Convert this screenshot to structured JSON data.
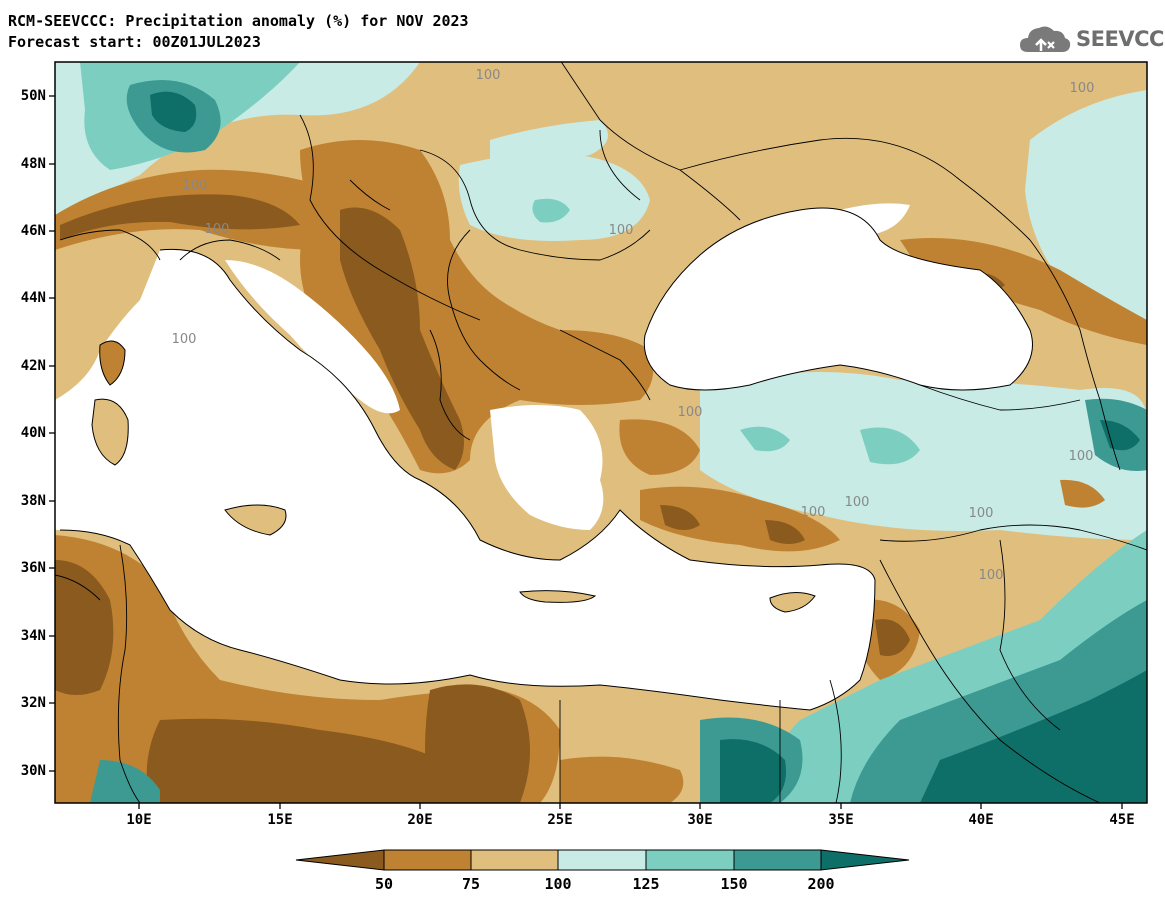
{
  "header": {
    "title": "RCM-SEEVCCC: Precipitation anomaly (%) for NOV 2023",
    "subtitle": "Forecast start: 00Z01JUL2023"
  },
  "logo": {
    "text": "SEEVCCC",
    "icon": "cloud-icon"
  },
  "map": {
    "lat_labels": [
      "50N",
      "48N",
      "46N",
      "44N",
      "42N",
      "40N",
      "38N",
      "36N",
      "34N",
      "32N",
      "30N"
    ],
    "lon_labels": [
      "10E",
      "15E",
      "20E",
      "25E",
      "30E",
      "35E",
      "40E",
      "45E"
    ],
    "contour_label": "100"
  },
  "colorbar": {
    "labels": [
      "50",
      "75",
      "100",
      "125",
      "150",
      "200"
    ],
    "colors": [
      "#8b5a1e",
      "#bf8232",
      "#e0bf7e",
      "#c8ebe6",
      "#7ccfc0",
      "#3c9a92",
      "#0e6e68"
    ]
  },
  "colors": {
    "sea": "#ffffff",
    "dry_strong": "#8b5a1e",
    "dry": "#bf8232",
    "dry_light": "#e0bf7e",
    "wet_light": "#c8ebe6",
    "wet": "#7ccfc0",
    "wet_strong": "#3c9a92",
    "wet_very": "#0e6e68"
  }
}
